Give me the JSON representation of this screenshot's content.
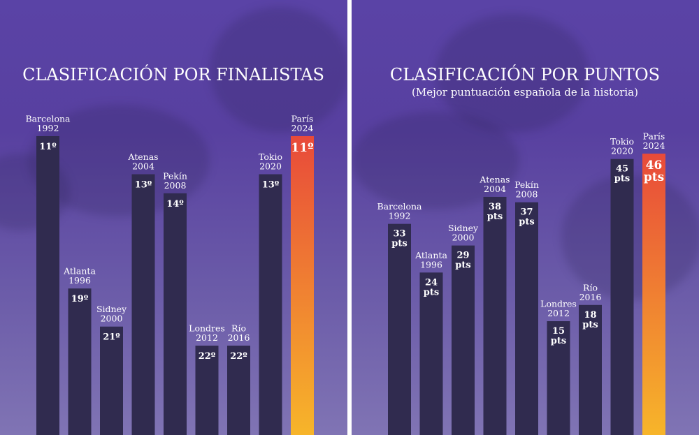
{
  "colors": {
    "bar": "#302b4f",
    "highlight_top": "#e84a3a",
    "highlight_bottom": "#f7b52a",
    "background": "#5a43a6"
  },
  "chart_data": [
    {
      "type": "bar",
      "title": "CLASIFICACIÓN POR FINALISTAS",
      "subtitle": "",
      "categories": [
        "Barcelona|1992",
        "Atlanta|1996",
        "Sidney|2000",
        "Atenas|2004",
        "Pekín|2008",
        "Londres|2012",
        "Río|2016",
        "Tokio|2020",
        "París|2024"
      ],
      "values": [
        11,
        19,
        21,
        13,
        14,
        22,
        22,
        13,
        11
      ],
      "value_labels": [
        "11º",
        "19º",
        "21º",
        "13º",
        "14º",
        "22º",
        "22º",
        "13º",
        "11º"
      ],
      "highlight_index": 8,
      "inverted": true,
      "ylim": [
        0,
        30
      ]
    },
    {
      "type": "bar",
      "title": "CLASIFICACIÓN POR PUNTOS",
      "subtitle": "(Mejor puntuación española de la historia)",
      "categories": [
        "Barcelona|1992",
        "Atlanta|1996",
        "Sidney|2000",
        "Atenas|2004",
        "Pekín|2008",
        "Londres|2012",
        "Río|2016",
        "Tokio|2020",
        "París|2024"
      ],
      "values": [
        33,
        24,
        29,
        38,
        37,
        15,
        18,
        45,
        46
      ],
      "value_labels": [
        "33|pts",
        "24|pts",
        "29|pts",
        "38|pts",
        "37|pts",
        "15|pts",
        "18|pts",
        "45|pts",
        "46|pts"
      ],
      "highlight_index": 8,
      "inverted": false,
      "ylim": [
        0,
        50
      ]
    }
  ]
}
